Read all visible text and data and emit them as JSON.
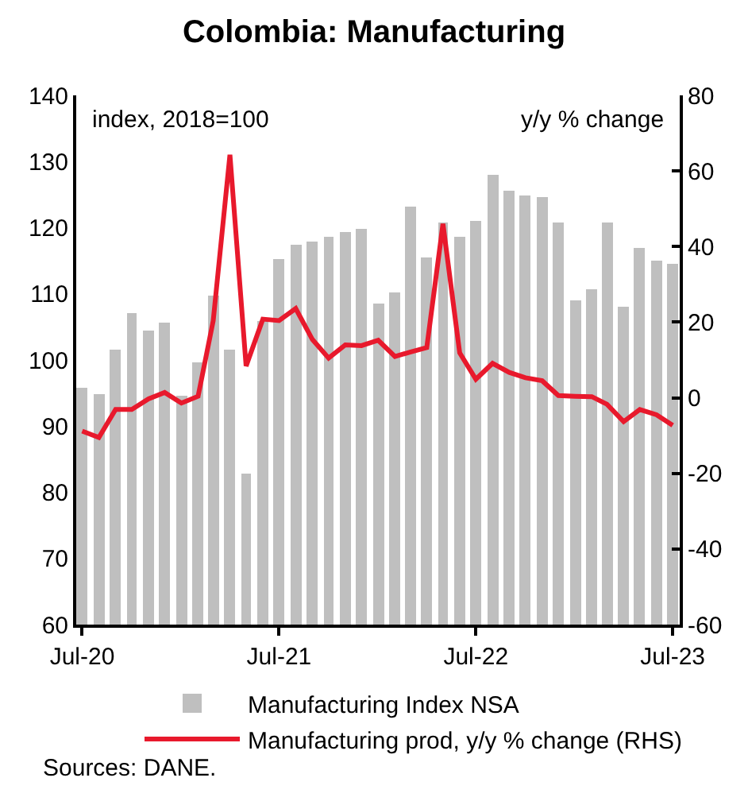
{
  "chart_data": {
    "type": "bar",
    "title": "Colombia: Manufacturing",
    "x": [
      "2020-07",
      "2020-08",
      "2020-09",
      "2020-10",
      "2020-11",
      "2020-12",
      "2021-01",
      "2021-02",
      "2021-03",
      "2021-04",
      "2021-05",
      "2021-06",
      "2021-07",
      "2021-08",
      "2021-09",
      "2021-10",
      "2021-11",
      "2021-12",
      "2022-01",
      "2022-02",
      "2022-03",
      "2022-04",
      "2022-05",
      "2022-06",
      "2022-07",
      "2022-08",
      "2022-09",
      "2022-10",
      "2022-11",
      "2022-12",
      "2023-01",
      "2023-02",
      "2023-03",
      "2023-04",
      "2023-05",
      "2023-06",
      "2023-07"
    ],
    "series": [
      {
        "name": "Manufacturing Index NSA",
        "color": "#bfbfbf",
        "values": [
          95.9,
          94.9,
          101.6,
          107.1,
          104.5,
          105.6,
          94.5,
          99.6,
          109.7,
          101.6,
          82.9,
          106,
          115.3,
          117.4,
          117.8,
          118.7,
          119.3,
          119.9,
          108.5,
          110.3,
          123.1,
          115.4,
          120.7,
          118.6,
          121.1,
          128.0,
          125.7,
          124.9,
          124.6,
          120.7,
          109.0,
          110.7,
          120.7,
          108.1,
          116.9,
          115.0,
          114.6
        ]
      },
      {
        "name": "Manufacturing prod, y/y % change (RHS)",
        "type": "line",
        "axis": "y2",
        "color": "#e8192c",
        "values": [
          -8.8,
          -10.5,
          -3.1,
          -3.1,
          -0.3,
          1.4,
          -1.4,
          0.4,
          20.4,
          64.3,
          8.4,
          20.8,
          20.4,
          23.6,
          15.4,
          10.5,
          14.0,
          13.8,
          15.2,
          10.9,
          12.1,
          13.3,
          46.0,
          11.9,
          4.9,
          9.1,
          6.7,
          5.3,
          4.5,
          0.6,
          0.4,
          0.3,
          -1.7,
          -6.3,
          -3.1,
          -4.5,
          -7.3
        ]
      }
    ],
    "xlim": [
      "2020-06-20",
      "2023-07-14"
    ],
    "xticks": [
      {
        "value": "2020-07-01",
        "label": "Jul-20"
      },
      {
        "value": "2021-07-01",
        "label": "Jul-21"
      },
      {
        "value": "2022-07-01",
        "label": "Jul-22"
      },
      {
        "value": "2023-07-01",
        "label": "Jul-23"
      }
    ],
    "ylim": [
      60,
      140
    ],
    "yticks": [
      60,
      70,
      80,
      90,
      100,
      110,
      120,
      130,
      140
    ],
    "y2lim": [
      -60,
      80
    ],
    "y2ticks": [
      -60,
      -40,
      -20,
      0,
      20,
      40,
      60,
      80
    ],
    "annotations": [
      "index, 2018=100",
      "y/y % change",
      "Sources: DANE."
    ],
    "grid": false,
    "legend": "bottom",
    "marker": "none",
    "line_style": "solid"
  }
}
